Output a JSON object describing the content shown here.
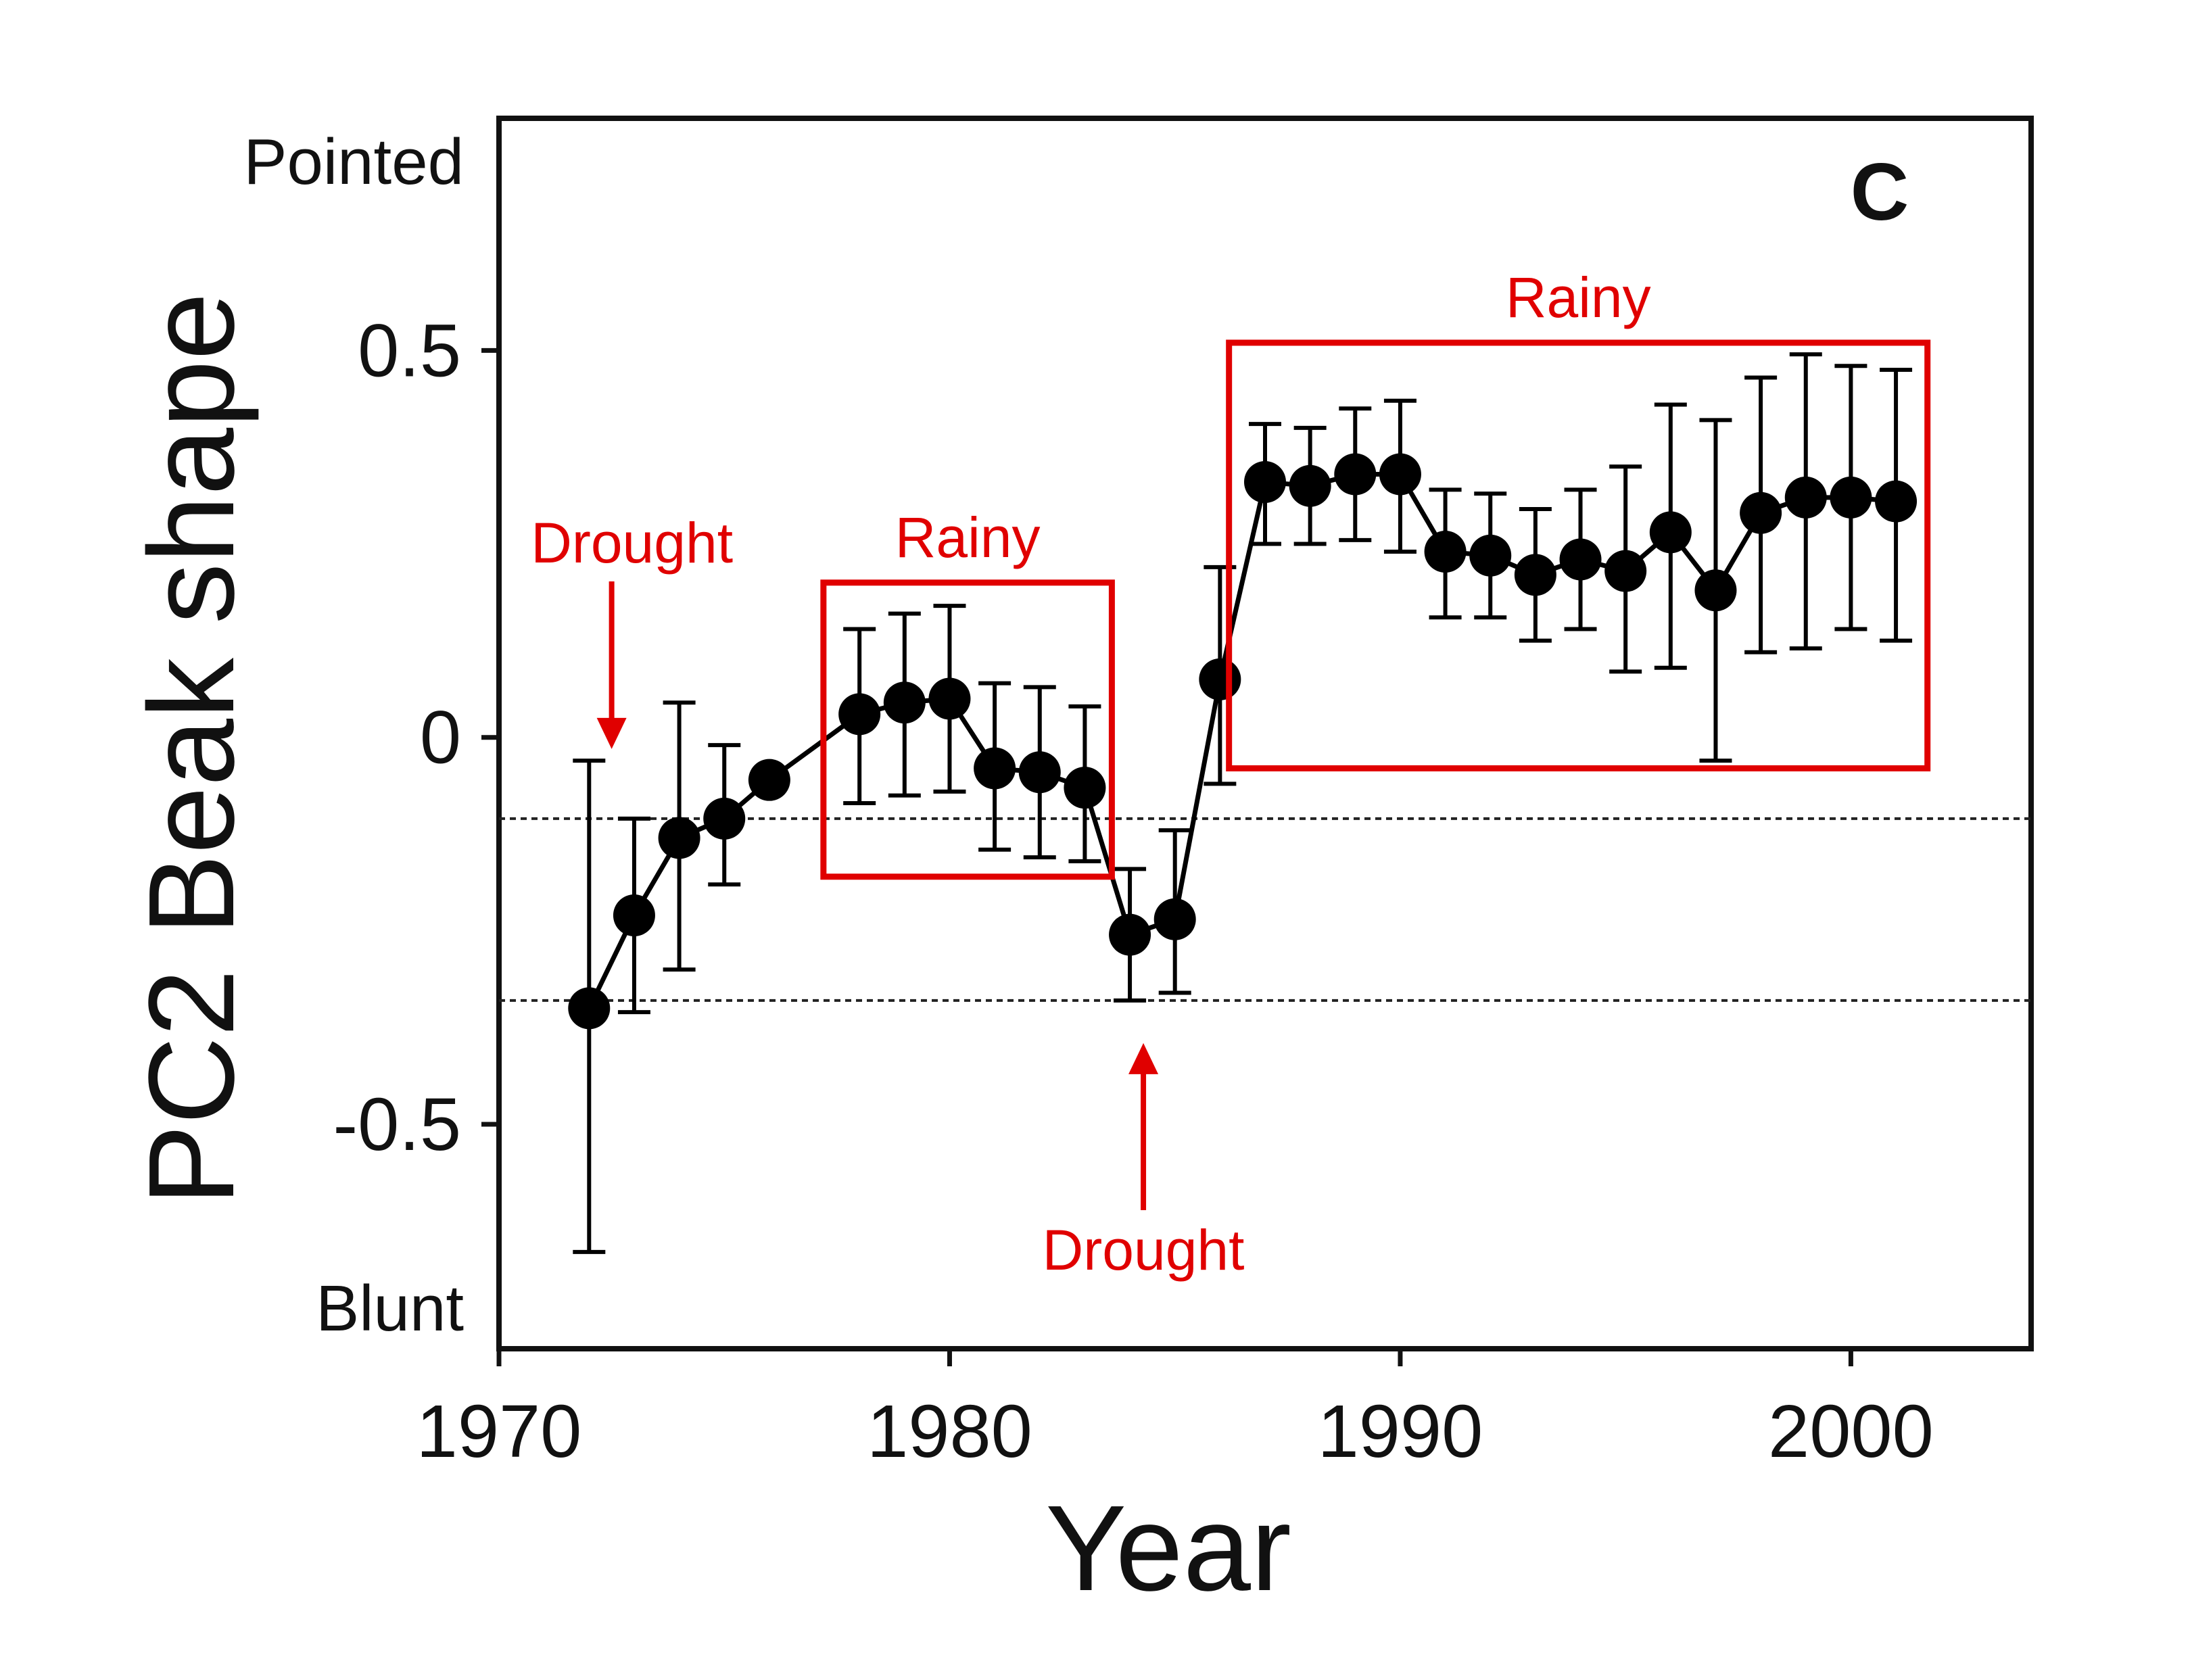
{
  "chart_data": {
    "type": "line",
    "panel_label": "C",
    "xlabel": "Year",
    "ylabel": "PC2 Beak shape",
    "y_top_label": "Pointed",
    "y_bottom_label": "Blunt",
    "xlim": [
      1970,
      2004
    ],
    "ylim": [
      -0.79,
      0.8
    ],
    "xticks": [
      1970,
      1980,
      1990,
      2000
    ],
    "xtick_labels": [
      "1970",
      "1980",
      "1990",
      "2000"
    ],
    "yticks": [
      0.5,
      0,
      -0.5
    ],
    "ytick_labels": [
      "0.5",
      "0",
      "-0.5"
    ],
    "grid": false,
    "reference_lines": [
      -0.105,
      -0.34
    ],
    "series": [
      {
        "x": [
          1972,
          1973,
          1974,
          1975,
          1976,
          1978,
          1979,
          1980,
          1981,
          1982,
          1983,
          1984,
          1985,
          1986,
          1987,
          1988,
          1989,
          1990,
          1991,
          1992,
          1993,
          1994,
          1995,
          1996,
          1997,
          1998,
          1999,
          2000,
          2001
        ],
        "y": [
          -0.35,
          -0.23,
          -0.13,
          -0.105,
          -0.055,
          0.03,
          0.045,
          0.05,
          -0.04,
          -0.045,
          -0.065,
          -0.255,
          -0.235,
          0.075,
          0.33,
          0.325,
          0.34,
          0.34,
          0.24,
          0.235,
          0.21,
          0.23,
          0.215,
          0.265,
          0.19,
          0.29,
          0.31,
          0.31,
          0.305
        ],
        "err_low": [
          -0.665,
          -0.355,
          -0.3,
          -0.19,
          null,
          -0.085,
          -0.075,
          -0.07,
          -0.145,
          -0.155,
          -0.16,
          -0.34,
          -0.33,
          -0.06,
          0.25,
          0.25,
          0.255,
          0.24,
          0.155,
          0.155,
          0.125,
          0.14,
          0.085,
          0.09,
          -0.03,
          0.11,
          0.115,
          0.14,
          0.125
        ],
        "err_high": [
          -0.03,
          -0.105,
          0.045,
          -0.01,
          null,
          0.14,
          0.16,
          0.17,
          0.07,
          0.065,
          0.04,
          -0.17,
          -0.12,
          0.22,
          0.405,
          0.4,
          0.425,
          0.435,
          0.32,
          0.315,
          0.295,
          0.32,
          0.35,
          0.43,
          0.41,
          0.465,
          0.495,
          0.48,
          0.475
        ]
      }
    ],
    "annotations": [
      {
        "label": "Drought",
        "arrow": "down",
        "year": 1972.5
      },
      {
        "label": "Rainy",
        "box_years": [
          1977.2,
          1983.6
        ],
        "box_values": [
          -0.18,
          0.2
        ]
      },
      {
        "label": "Drought",
        "arrow": "up",
        "year": 1984.3
      },
      {
        "label": "Rainy",
        "box_years": [
          1986.2,
          2001.7
        ],
        "box_values": [
          -0.04,
          0.51
        ]
      }
    ],
    "colors": {
      "data": "#000000",
      "annotation": "#e00000"
    }
  }
}
